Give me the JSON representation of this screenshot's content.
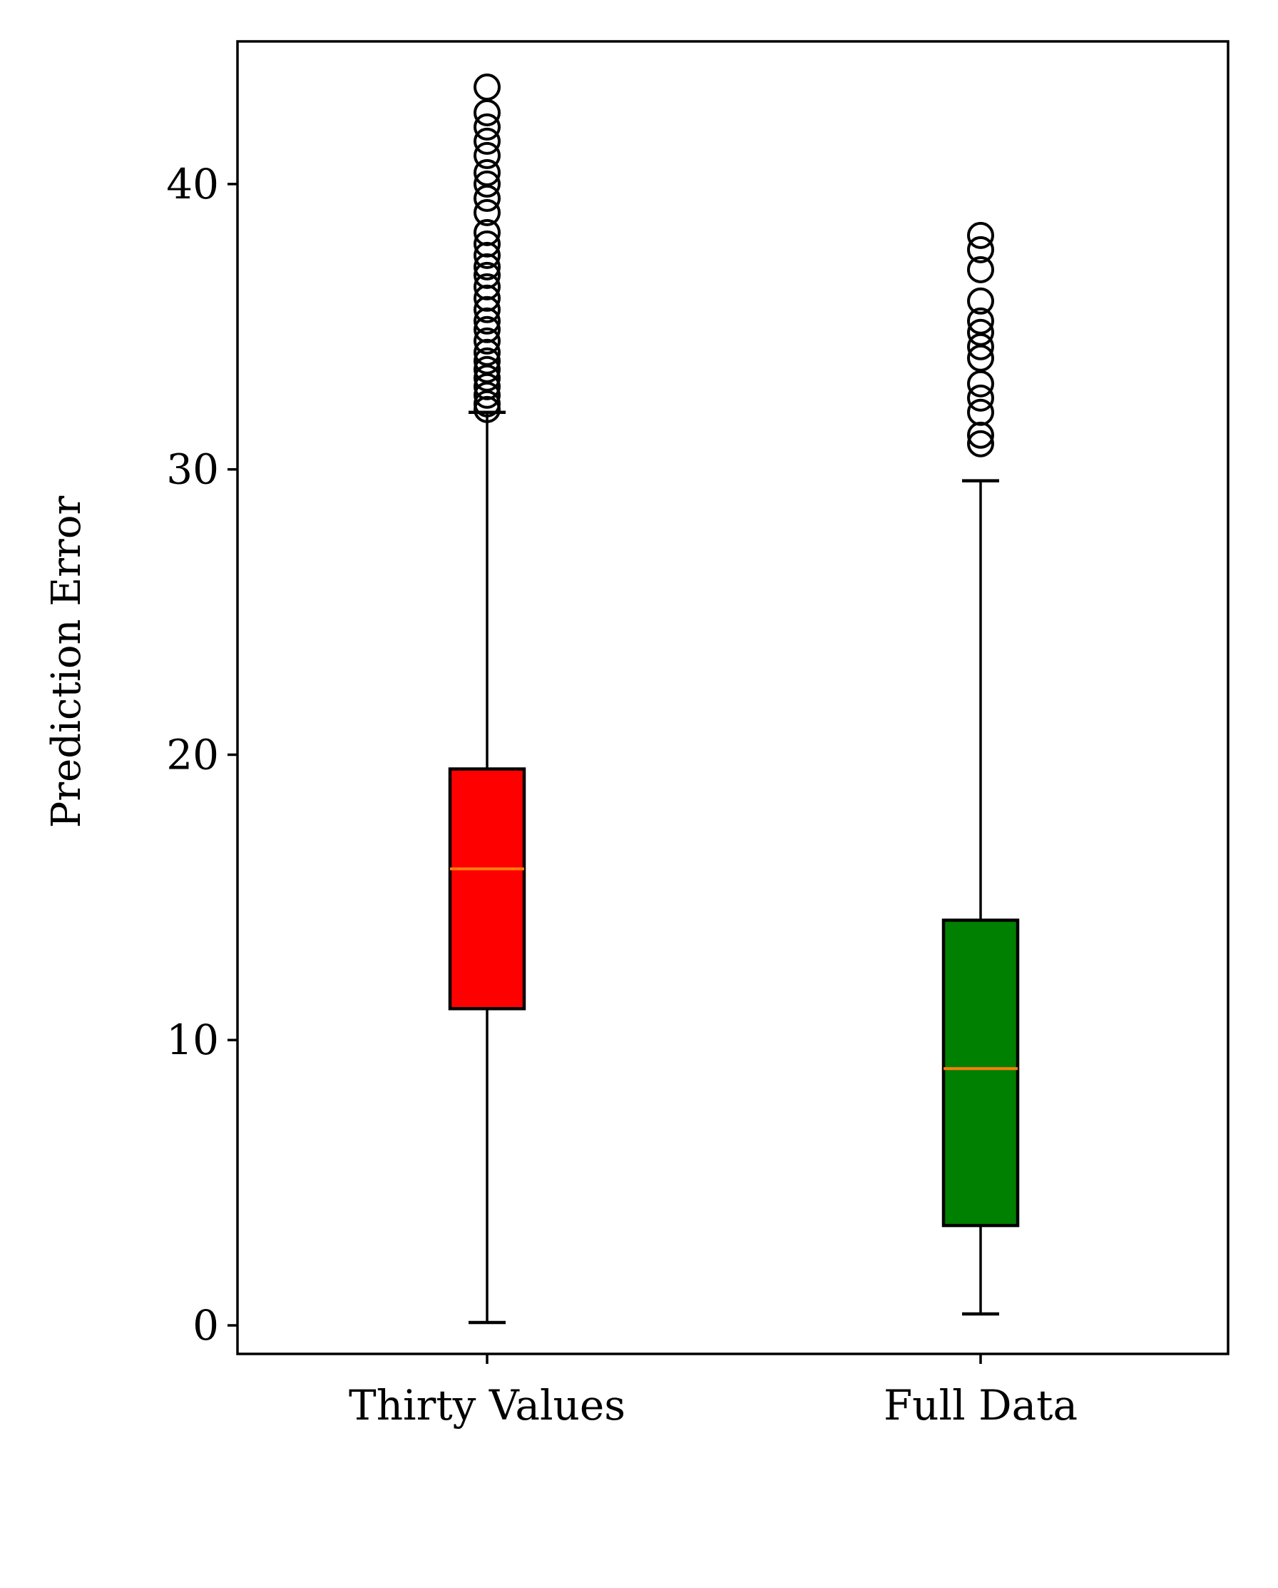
{
  "chart_data": {
    "type": "box",
    "ylabel": "Prediction Error",
    "ylim": [
      -1.0,
      45.0
    ],
    "yticks": [
      0,
      10,
      20,
      30,
      40
    ],
    "categories": [
      "Thirty Values",
      "Full Data"
    ],
    "boxes": [
      {
        "category": "Thirty Values",
        "whisker_low": 0.1,
        "q1": 11.1,
        "median": 16.0,
        "q3": 19.5,
        "whisker_high": 32.0,
        "color": "#ff0000",
        "outliers": [
          32.1,
          32.3,
          32.6,
          32.9,
          33.2,
          33.5,
          33.8,
          34.1,
          34.5,
          34.9,
          35.2,
          35.6,
          36.0,
          36.4,
          36.8,
          37.1,
          37.5,
          37.9,
          38.3,
          39.0,
          39.5,
          40.0,
          40.4,
          41.0,
          41.5,
          42.0,
          42.5,
          43.4
        ]
      },
      {
        "category": "Full Data",
        "whisker_low": 0.4,
        "q1": 3.5,
        "median": 9.0,
        "q3": 14.2,
        "whisker_high": 29.6,
        "color": "#008000",
        "outliers": [
          30.9,
          31.2,
          32.0,
          32.5,
          33.0,
          33.9,
          34.3,
          34.8,
          35.2,
          35.9,
          37.0,
          37.7,
          38.2
        ]
      }
    ],
    "median_color": "#ff7f0e",
    "outlier_marker": "circle-open",
    "grid": false,
    "legend": "none"
  }
}
